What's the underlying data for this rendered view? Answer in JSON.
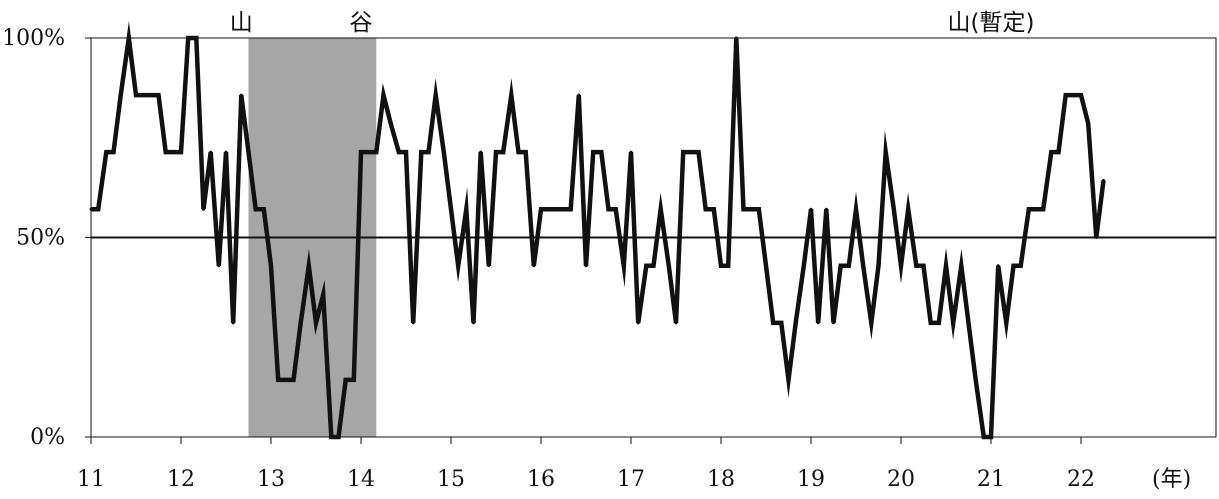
{
  "chart_data": {
    "type": "line",
    "title": "",
    "xlabel": "",
    "ylabel": "",
    "x_unit_label": "(年)",
    "xlim": [
      11,
      23.5
    ],
    "ylim": [
      0,
      100
    ],
    "x_ticks": [
      {
        "value": 11,
        "label": "11"
      },
      {
        "value": 12,
        "label": "12"
      },
      {
        "value": 13,
        "label": "13"
      },
      {
        "value": 14,
        "label": "14"
      },
      {
        "value": 15,
        "label": "15"
      },
      {
        "value": 16,
        "label": "16"
      },
      {
        "value": 17,
        "label": "17"
      },
      {
        "value": 18,
        "label": "18"
      },
      {
        "value": 19,
        "label": "19"
      },
      {
        "value": 20,
        "label": "20"
      },
      {
        "value": 21,
        "label": "21"
      },
      {
        "value": 22,
        "label": "22"
      }
    ],
    "y_ticks": [
      {
        "value": 0,
        "label": "0%"
      },
      {
        "value": 50,
        "label": "50%"
      },
      {
        "value": 100,
        "label": "100%"
      }
    ],
    "reference_line": 50,
    "shaded_period": {
      "start": 12.75,
      "end": 14.17
    },
    "annotations": [
      {
        "text": "山",
        "x": 12.67
      },
      {
        "text": "谷",
        "x": 14.0
      },
      {
        "text": "山(暫定)",
        "x": 21.0
      }
    ],
    "colors": {
      "line": "#111111",
      "shade": "#a6a6a6",
      "reference": "#111111"
    },
    "series": [
      {
        "values": [
          [
            11.0,
            57.1
          ],
          [
            11.08,
            57.1
          ],
          [
            11.17,
            71.4
          ],
          [
            11.25,
            71.4
          ],
          [
            11.33,
            85.7
          ],
          [
            11.42,
            100
          ],
          [
            11.5,
            85.7
          ],
          [
            11.58,
            85.7
          ],
          [
            11.67,
            85.7
          ],
          [
            11.75,
            85.7
          ],
          [
            11.83,
            71.4
          ],
          [
            11.92,
            71.4
          ],
          [
            12.0,
            71.4
          ],
          [
            12.08,
            100
          ],
          [
            12.17,
            100
          ],
          [
            12.25,
            57.1
          ],
          [
            12.33,
            71.4
          ],
          [
            12.42,
            42.9
          ],
          [
            12.5,
            71.4
          ],
          [
            12.58,
            28.6
          ],
          [
            12.67,
            85.7
          ],
          [
            12.75,
            71.4
          ],
          [
            12.83,
            57.1
          ],
          [
            12.92,
            57.1
          ],
          [
            13.0,
            42.9
          ],
          [
            13.08,
            14.3
          ],
          [
            13.17,
            14.3
          ],
          [
            13.25,
            14.3
          ],
          [
            13.33,
            28.6
          ],
          [
            13.42,
            42.9
          ],
          [
            13.5,
            28.6
          ],
          [
            13.58,
            35.7
          ],
          [
            13.67,
            0
          ],
          [
            13.75,
            0
          ],
          [
            13.83,
            14.3
          ],
          [
            13.92,
            14.3
          ],
          [
            14.0,
            71.4
          ],
          [
            14.08,
            71.4
          ],
          [
            14.17,
            71.4
          ],
          [
            14.25,
            85.7
          ],
          [
            14.33,
            78.6
          ],
          [
            14.42,
            71.4
          ],
          [
            14.5,
            71.4
          ],
          [
            14.58,
            28.6
          ],
          [
            14.67,
            71.4
          ],
          [
            14.75,
            71.4
          ],
          [
            14.83,
            85.7
          ],
          [
            14.92,
            71.4
          ],
          [
            15.0,
            57.1
          ],
          [
            15.08,
            42.9
          ],
          [
            15.17,
            57.1
          ],
          [
            15.25,
            28.6
          ],
          [
            15.33,
            71.4
          ],
          [
            15.42,
            42.9
          ],
          [
            15.5,
            71.4
          ],
          [
            15.58,
            71.4
          ],
          [
            15.67,
            85.7
          ],
          [
            15.75,
            71.4
          ],
          [
            15.83,
            71.4
          ],
          [
            15.92,
            42.9
          ],
          [
            16.0,
            57.1
          ],
          [
            16.08,
            57.1
          ],
          [
            16.17,
            57.1
          ],
          [
            16.25,
            57.1
          ],
          [
            16.33,
            57.1
          ],
          [
            16.42,
            85.7
          ],
          [
            16.5,
            42.9
          ],
          [
            16.58,
            71.4
          ],
          [
            16.67,
            71.4
          ],
          [
            16.75,
            57.1
          ],
          [
            16.83,
            57.1
          ],
          [
            16.92,
            42.9
          ],
          [
            17.0,
            71.4
          ],
          [
            17.08,
            28.6
          ],
          [
            17.17,
            42.9
          ],
          [
            17.25,
            42.9
          ],
          [
            17.33,
            57.1
          ],
          [
            17.42,
            42.9
          ],
          [
            17.5,
            28.6
          ],
          [
            17.58,
            71.4
          ],
          [
            17.67,
            71.4
          ],
          [
            17.75,
            71.4
          ],
          [
            17.83,
            57.1
          ],
          [
            17.92,
            57.1
          ],
          [
            18.0,
            42.9
          ],
          [
            18.08,
            42.9
          ],
          [
            18.17,
            100
          ],
          [
            18.25,
            57.1
          ],
          [
            18.33,
            57.1
          ],
          [
            18.42,
            57.1
          ],
          [
            18.5,
            42.9
          ],
          [
            18.58,
            28.6
          ],
          [
            18.67,
            28.6
          ],
          [
            18.75,
            14.3
          ],
          [
            18.83,
            28.6
          ],
          [
            18.92,
            42.9
          ],
          [
            19.0,
            57.1
          ],
          [
            19.08,
            28.6
          ],
          [
            19.17,
            57.1
          ],
          [
            19.25,
            28.6
          ],
          [
            19.33,
            42.9
          ],
          [
            19.42,
            42.9
          ],
          [
            19.5,
            57.1
          ],
          [
            19.58,
            42.9
          ],
          [
            19.67,
            28.6
          ],
          [
            19.75,
            42.9
          ],
          [
            19.83,
            71.4
          ],
          [
            19.92,
            57.1
          ],
          [
            20.0,
            42.9
          ],
          [
            20.08,
            57.1
          ],
          [
            20.17,
            42.9
          ],
          [
            20.25,
            42.9
          ],
          [
            20.33,
            28.6
          ],
          [
            20.42,
            28.6
          ],
          [
            20.5,
            42.9
          ],
          [
            20.58,
            28.6
          ],
          [
            20.67,
            42.9
          ],
          [
            20.75,
            28.6
          ],
          [
            20.83,
            14.3
          ],
          [
            20.92,
            0
          ],
          [
            21.0,
            0
          ],
          [
            21.08,
            42.9
          ],
          [
            21.17,
            28.6
          ],
          [
            21.25,
            42.9
          ],
          [
            21.33,
            42.9
          ],
          [
            21.42,
            57.1
          ],
          [
            21.5,
            57.1
          ],
          [
            21.58,
            57.1
          ],
          [
            21.67,
            71.4
          ],
          [
            21.75,
            71.4
          ],
          [
            21.83,
            85.7
          ],
          [
            21.92,
            85.7
          ],
          [
            22.0,
            85.7
          ],
          [
            22.08,
            78.6
          ],
          [
            22.17,
            50.0
          ],
          [
            22.25,
            64.3
          ]
        ]
      }
    ]
  }
}
